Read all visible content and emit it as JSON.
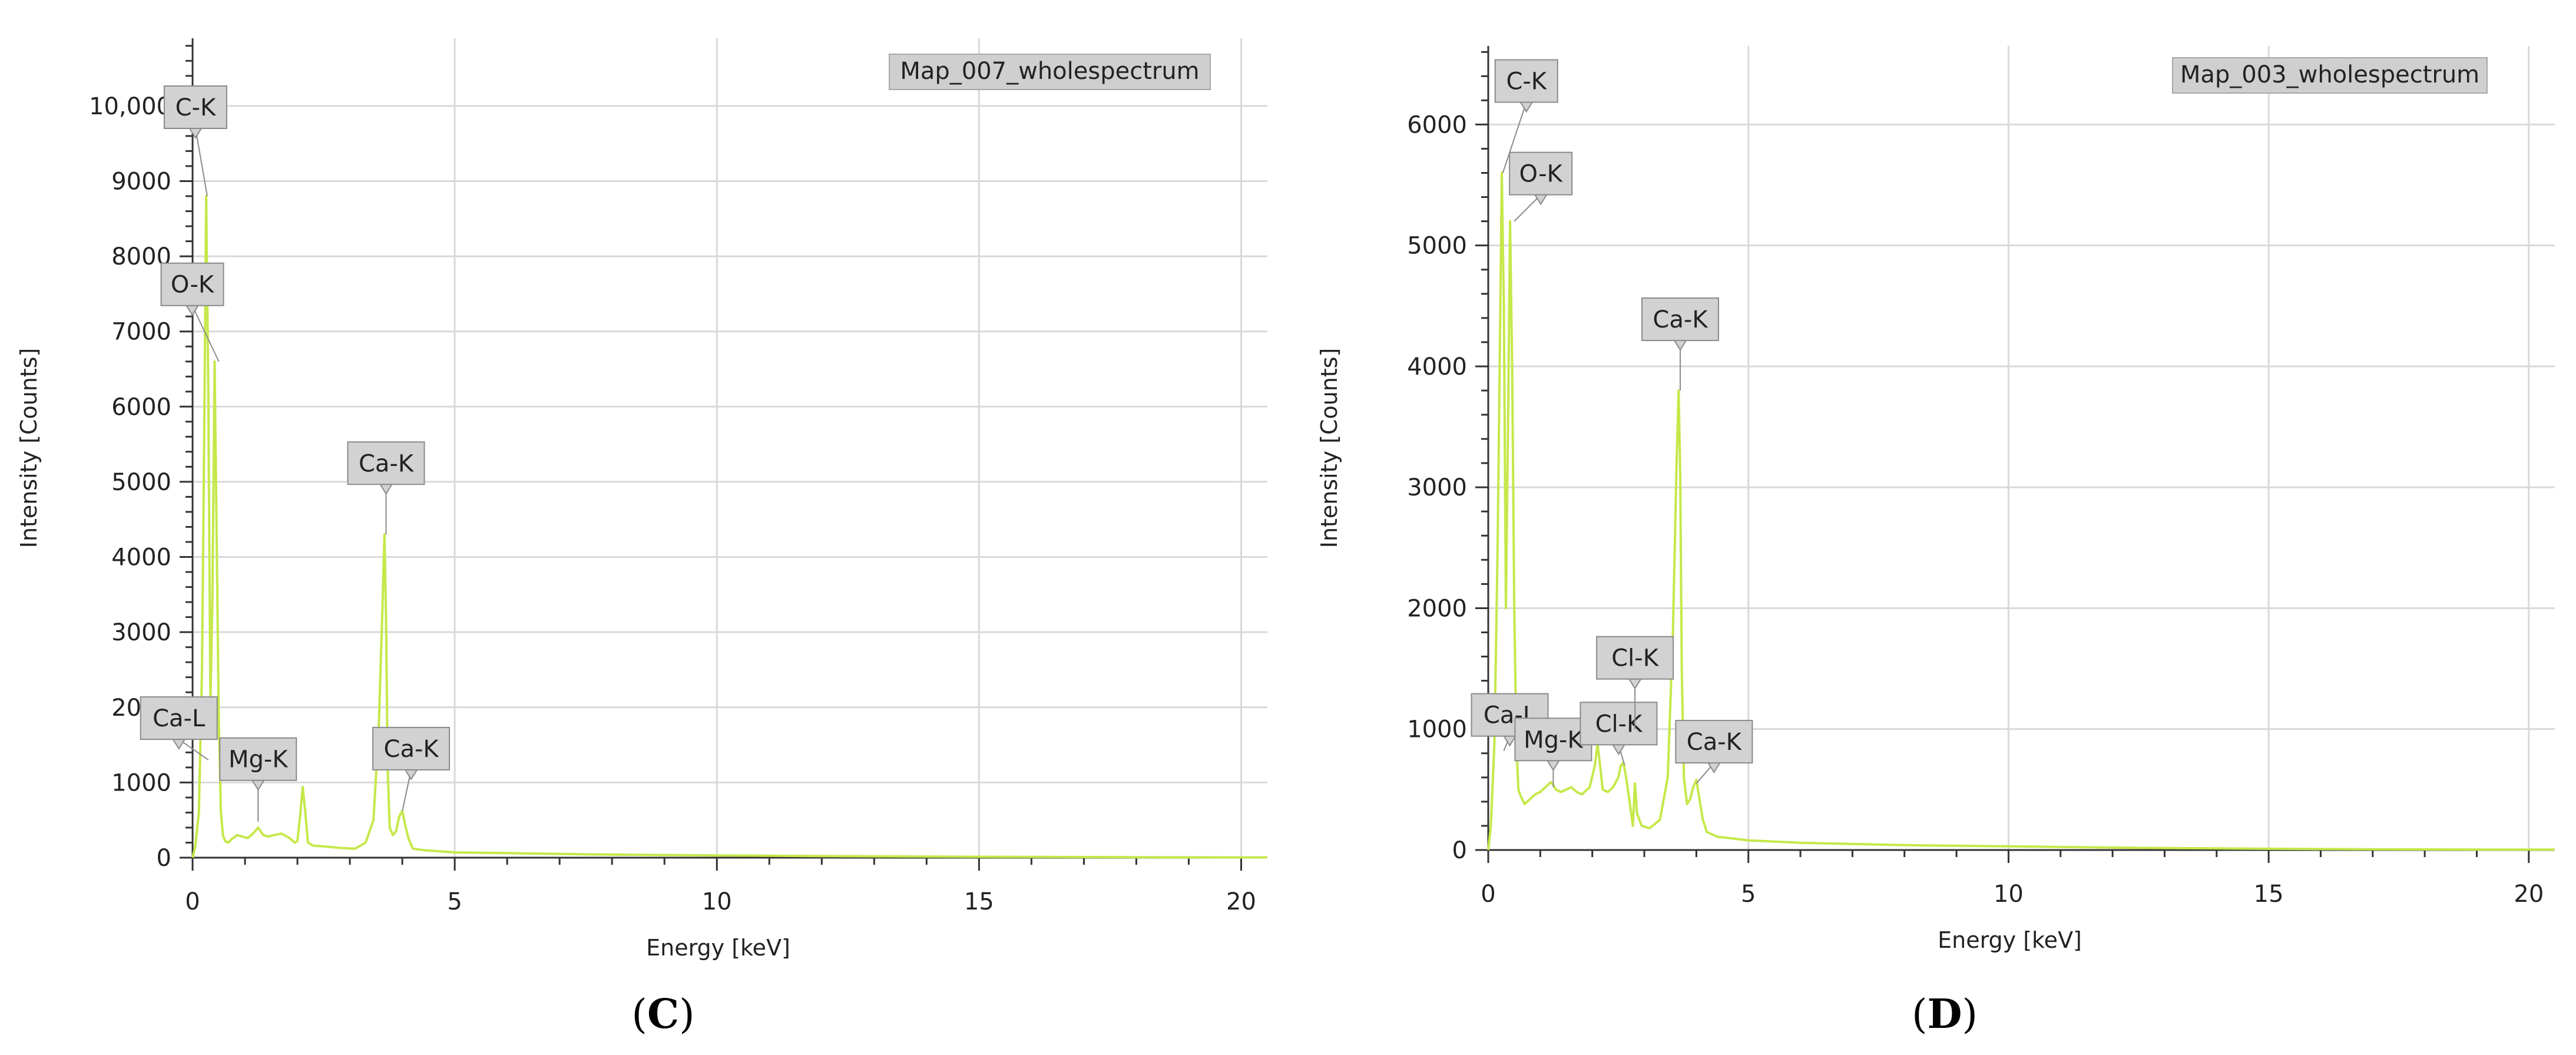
{
  "chart_data": [
    {
      "type": "line",
      "caption_letter": "C",
      "legend": "Map_007_wholespectrum",
      "xlabel": "Energy [keV]",
      "ylabel": "Intensity [Counts]",
      "xlim": [
        0,
        20.5
      ],
      "ylim": [
        0,
        10900
      ],
      "x_ticks": [
        0,
        5,
        10,
        15,
        20
      ],
      "y_ticks": [
        0,
        1000,
        2000,
        3000,
        4000,
        5000,
        6000,
        7000,
        8000,
        9000,
        10000
      ],
      "y_tick_labels": [
        "0",
        "1000",
        "2000",
        "3000",
        "4000",
        "5000",
        "6000",
        "7000",
        "8000",
        "9000",
        "10,000"
      ],
      "line_color": "#c5e84a",
      "grid": true,
      "legend_position": "top-right",
      "series": [
        {
          "x": [
            0,
            0.05,
            0.12,
            0.18,
            0.22,
            0.26,
            0.3,
            0.34,
            0.38,
            0.42,
            0.46,
            0.5,
            0.54,
            0.58,
            0.62,
            0.68,
            0.75,
            0.85,
            0.95,
            1.05,
            1.15,
            1.25,
            1.35,
            1.45,
            1.55,
            1.7,
            1.85,
            1.95,
            2.0,
            2.05,
            2.1,
            2.15,
            2.2,
            2.3,
            2.5,
            2.8,
            3.1,
            3.3,
            3.45,
            3.55,
            3.62,
            3.66,
            3.69,
            3.72,
            3.76,
            3.82,
            3.88,
            3.94,
            4.0,
            4.06,
            4.12,
            4.2,
            4.4,
            5.0,
            6.0,
            7.0,
            8.0,
            9.0,
            10.0,
            11.0,
            12.0,
            13.0,
            14.0,
            15.0,
            16.0,
            17.0,
            18.0,
            19.0,
            20.0,
            20.5
          ],
          "y": [
            0,
            150,
            600,
            2500,
            5500,
            8800,
            6200,
            2000,
            3500,
            6600,
            4200,
            1800,
            600,
            300,
            220,
            200,
            250,
            300,
            280,
            260,
            320,
            400,
            300,
            280,
            300,
            320,
            260,
            200,
            220,
            550,
            940,
            600,
            200,
            160,
            150,
            130,
            120,
            200,
            500,
            1700,
            3300,
            4300,
            3200,
            1200,
            400,
            300,
            350,
            550,
            620,
            420,
            250,
            120,
            100,
            70,
            60,
            50,
            40,
            35,
            30,
            25,
            20,
            18,
            15,
            12,
            10,
            8,
            6,
            5,
            4,
            4
          ]
        }
      ],
      "peak_labels": [
        {
          "text": "C-K",
          "x": 0.28,
          "y": 8800
        },
        {
          "text": "O-K",
          "x": 0.5,
          "y": 6600
        },
        {
          "text": "Ca-K",
          "x": 3.69,
          "y": 4300
        },
        {
          "text": "Ca-L",
          "x": 0.3,
          "y": 1300
        },
        {
          "text": "Mg-K",
          "x": 1.25,
          "y": 480
        },
        {
          "text": "Ca-K",
          "x": 4.0,
          "y": 620
        }
      ]
    },
    {
      "type": "line",
      "caption_letter": "D",
      "legend": "Map_003_wholespectrum",
      "xlabel": "Energy [keV]",
      "ylabel": "Intensity [Counts]",
      "xlim": [
        0,
        20.5
      ],
      "ylim": [
        0,
        6650
      ],
      "x_ticks": [
        0,
        5,
        10,
        15,
        20
      ],
      "y_ticks": [
        0,
        1000,
        2000,
        3000,
        4000,
        5000,
        6000
      ],
      "y_tick_labels": [
        "0",
        "1000",
        "2000",
        "3000",
        "4000",
        "5000",
        "6000"
      ],
      "line_color": "#c5e84a",
      "grid": true,
      "legend_position": "top-right",
      "series": [
        {
          "x": [
            0,
            0.05,
            0.12,
            0.18,
            0.22,
            0.26,
            0.3,
            0.34,
            0.38,
            0.42,
            0.46,
            0.5,
            0.54,
            0.58,
            0.62,
            0.7,
            0.8,
            0.9,
            1.0,
            1.1,
            1.2,
            1.25,
            1.3,
            1.4,
            1.5,
            1.6,
            1.7,
            1.8,
            1.95,
            2.05,
            2.1,
            2.15,
            2.2,
            2.3,
            2.4,
            2.5,
            2.55,
            2.6,
            2.65,
            2.7,
            2.78,
            2.82,
            2.86,
            2.95,
            3.1,
            3.3,
            3.45,
            3.55,
            3.62,
            3.66,
            3.69,
            3.72,
            3.76,
            3.82,
            3.88,
            3.94,
            4.0,
            4.06,
            4.12,
            4.2,
            4.4,
            5.0,
            6.0,
            7.0,
            8.0,
            9.0,
            10.0,
            11.0,
            12.0,
            13.0,
            14.0,
            15.0,
            16.0,
            17.0,
            18.0,
            19.0,
            20.0,
            20.5
          ],
          "y": [
            0,
            200,
            900,
            2500,
            4000,
            5600,
            4500,
            2000,
            3500,
            5200,
            4000,
            2000,
            900,
            500,
            450,
            380,
            420,
            460,
            480,
            520,
            560,
            540,
            500,
            480,
            500,
            520,
            480,
            460,
            520,
            700,
            880,
            700,
            500,
            480,
            520,
            600,
            700,
            720,
            600,
            450,
            200,
            550,
            300,
            200,
            180,
            250,
            600,
            1800,
            3200,
            3800,
            3100,
            1500,
            600,
            380,
            420,
            520,
            580,
            420,
            260,
            150,
            110,
            80,
            60,
            50,
            40,
            35,
            30,
            25,
            20,
            16,
            13,
            10,
            8,
            6,
            5,
            4,
            4,
            4
          ]
        }
      ],
      "peak_labels": [
        {
          "text": "C-K",
          "x": 0.28,
          "y": 5600
        },
        {
          "text": "O-K",
          "x": 0.5,
          "y": 5200
        },
        {
          "text": "Ca-K",
          "x": 3.69,
          "y": 3800
        },
        {
          "text": "Ca-L",
          "x": 0.3,
          "y": 820
        },
        {
          "text": "Mg-K",
          "x": 1.25,
          "y": 520
        },
        {
          "text": "Cl-K",
          "x": 2.62,
          "y": 700
        },
        {
          "text": "Cl-K",
          "x": 2.82,
          "y": 1000
        },
        {
          "text": "Ca-K",
          "x": 4.0,
          "y": 550
        }
      ]
    }
  ]
}
